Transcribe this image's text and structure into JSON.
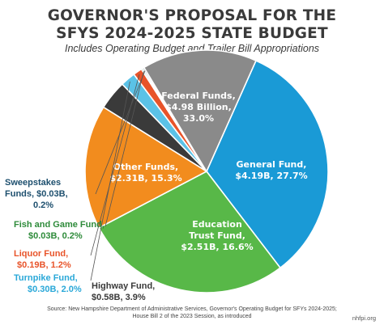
{
  "header": {
    "title_line_1": "GOVERNOR'S PROPOSAL FOR THE",
    "title_line_2": "SFYS 2024-2025 STATE BUDGET",
    "subtitle": "Includes Operating Budget and Trailer Bill Appropriations"
  },
  "chart_data": {
    "type": "pie",
    "title": "GOVERNOR'S PROPOSAL FOR THE SFYS 2024-2025 STATE BUDGET",
    "subtitle": "Includes Operating Budget and Trailer Bill Appropriations",
    "slices": [
      {
        "name": "Federal Funds",
        "value_label": "$4.98 Billion,",
        "value": 4.98,
        "percent": 33.0,
        "percent_label": "33.0%",
        "color": "#1a9ad6"
      },
      {
        "name": "General Fund",
        "value_label": "$4.19B,",
        "value": 4.19,
        "percent": 27.7,
        "percent_label": "27.7%",
        "color": "#58b848"
      },
      {
        "name": "Education Trust Fund",
        "value_label": "$2.51B,",
        "value": 2.51,
        "percent": 16.6,
        "percent_label": "16.6%",
        "color": "#f28c1e"
      },
      {
        "name": "Highway Fund",
        "value_label": "$0.58B,",
        "value": 0.58,
        "percent": 3.9,
        "percent_label": "3.9%",
        "color": "#3a3a3a"
      },
      {
        "name": "Turnpike Fund",
        "value_label": "$0.30B,",
        "value": 0.3,
        "percent": 2.0,
        "percent_label": "2.0%",
        "color": "#5bc2e7"
      },
      {
        "name": "Liquor Fund",
        "value_label": "$0.19B,",
        "value": 0.19,
        "percent": 1.2,
        "percent_label": "1.2%",
        "color": "#e8542a"
      },
      {
        "name": "Fish and Game Fund",
        "value_label": "$0.03B,",
        "value": 0.03,
        "percent": 0.2,
        "percent_label": "0.2%",
        "color": "#2e8b3a"
      },
      {
        "name": "Sweepstakes Funds",
        "value_label": "$0.03B,",
        "value": 0.03,
        "percent": 0.2,
        "percent_label": "0.2%",
        "color": "#1d4f6e"
      },
      {
        "name": "Other Funds",
        "value_label": "$2.31B,",
        "value": 2.31,
        "percent": 15.3,
        "percent_label": "15.3%",
        "color": "#8a8a8a"
      }
    ],
    "labels": {
      "federal": [
        "Federal Funds,",
        "$4.98 Billion,",
        "33.0%"
      ],
      "general": [
        "General Fund,",
        "$4.19B, 27.7%"
      ],
      "education": [
        "Education",
        "Trust Fund,",
        "$2.51B, 16.6%"
      ],
      "other": [
        "Other Funds,",
        "$2.31B, 15.3%"
      ],
      "highway": [
        "Highway Fund,",
        "$0.58B, 3.9%"
      ],
      "turnpike": [
        "Turnpike Fund,",
        "$0.30B, 2.0%"
      ],
      "liquor": [
        "Liquor Fund,",
        "$0.19B, 1.2%"
      ],
      "fishgame": [
        "Fish and Game Fund,",
        "$0.03B, 0.2%"
      ],
      "sweepstakes": [
        "Sweepstakes",
        "Funds, $0.03B,",
        "0.2%"
      ]
    }
  },
  "footer": {
    "source_line_1": "Source: New Hampshire Department of Administrative Services, Governor's Operating Budget for SFYs 2024-2025;",
    "source_line_2": "House Bill 2 of the 2023 Session, as introduced",
    "brand": "nhfpi.org"
  }
}
